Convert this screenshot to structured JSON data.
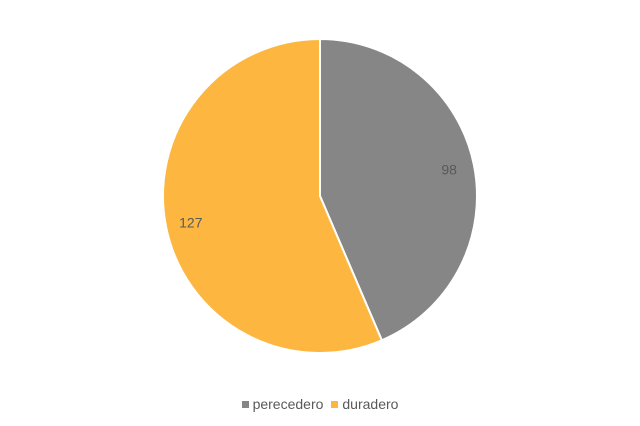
{
  "chart_data": {
    "type": "pie",
    "categories": [
      "perecedero",
      "duradero"
    ],
    "values": [
      98,
      127
    ],
    "data_labels": [
      "98",
      "127"
    ],
    "colors": [
      "#868686",
      "#FDB740"
    ],
    "legend_position": "bottom",
    "start_angle": "top, clockwise"
  },
  "legend": {
    "items": [
      {
        "label": "perecedero",
        "color": "#868686"
      },
      {
        "label": "duradero",
        "color": "#FDB740"
      }
    ]
  }
}
